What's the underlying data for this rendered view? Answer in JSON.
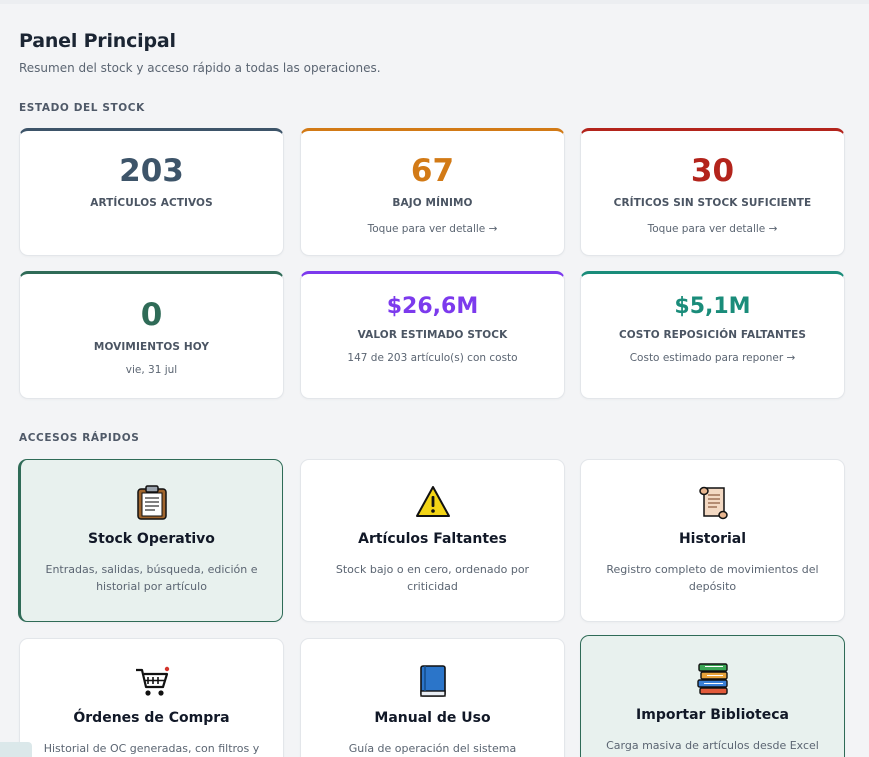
{
  "header": {
    "title": "Panel Principal",
    "subtitle": "Resumen del stock y acceso rápido a todas las operaciones."
  },
  "sections": {
    "stock": "ESTADO DEL STOCK",
    "quick": "ACCESOS RÁPIDOS"
  },
  "stats": [
    {
      "value": "203",
      "label": "ARTÍCULOS ACTIVOS",
      "hint": "",
      "color": "#3d5469"
    },
    {
      "value": "67",
      "label": "BAJO MÍNIMO",
      "hint": "Toque para ver detalle →",
      "color": "#d27a16"
    },
    {
      "value": "30",
      "label": "CRÍTICOS SIN STOCK SUFICIENTE",
      "hint": "Toque para ver detalle →",
      "color": "#b3241c"
    },
    {
      "value": "0",
      "label": "MOVIMIENTOS HOY",
      "hint": "vie, 31 jul",
      "color": "#2f6b57"
    },
    {
      "value": "$26,6M",
      "label": "VALOR ESTIMADO STOCK",
      "hint": "147 de 203 artículo(s) con costo",
      "color": "#7c3aed"
    },
    {
      "value": "$5,1M",
      "label": "COSTO REPOSICIÓN FALTANTES",
      "hint": "Costo estimado para reponer →",
      "color": "#1a8c7a"
    }
  ],
  "quick_access": [
    {
      "title": "Stock Operativo",
      "desc": "Entradas, salidas, búsqueda, edición e historial por artículo",
      "icon": "clipboard-icon"
    },
    {
      "title": "Artículos Faltantes",
      "desc": "Stock bajo o en cero, ordenado por criticidad",
      "icon": "warning-icon"
    },
    {
      "title": "Historial",
      "desc": "Registro completo de movimientos del depósito",
      "icon": "scroll-icon"
    },
    {
      "title": "Órdenes de Compra",
      "desc": "Historial de OC generadas, con filtros y",
      "icon": "shopping-cart-icon"
    },
    {
      "title": "Manual de Uso",
      "desc": "Guía de operación del sistema",
      "icon": "book-icon"
    },
    {
      "title": "Importar Biblioteca",
      "desc": "Carga masiva de artículos desde Excel",
      "icon": "books-icon"
    }
  ]
}
